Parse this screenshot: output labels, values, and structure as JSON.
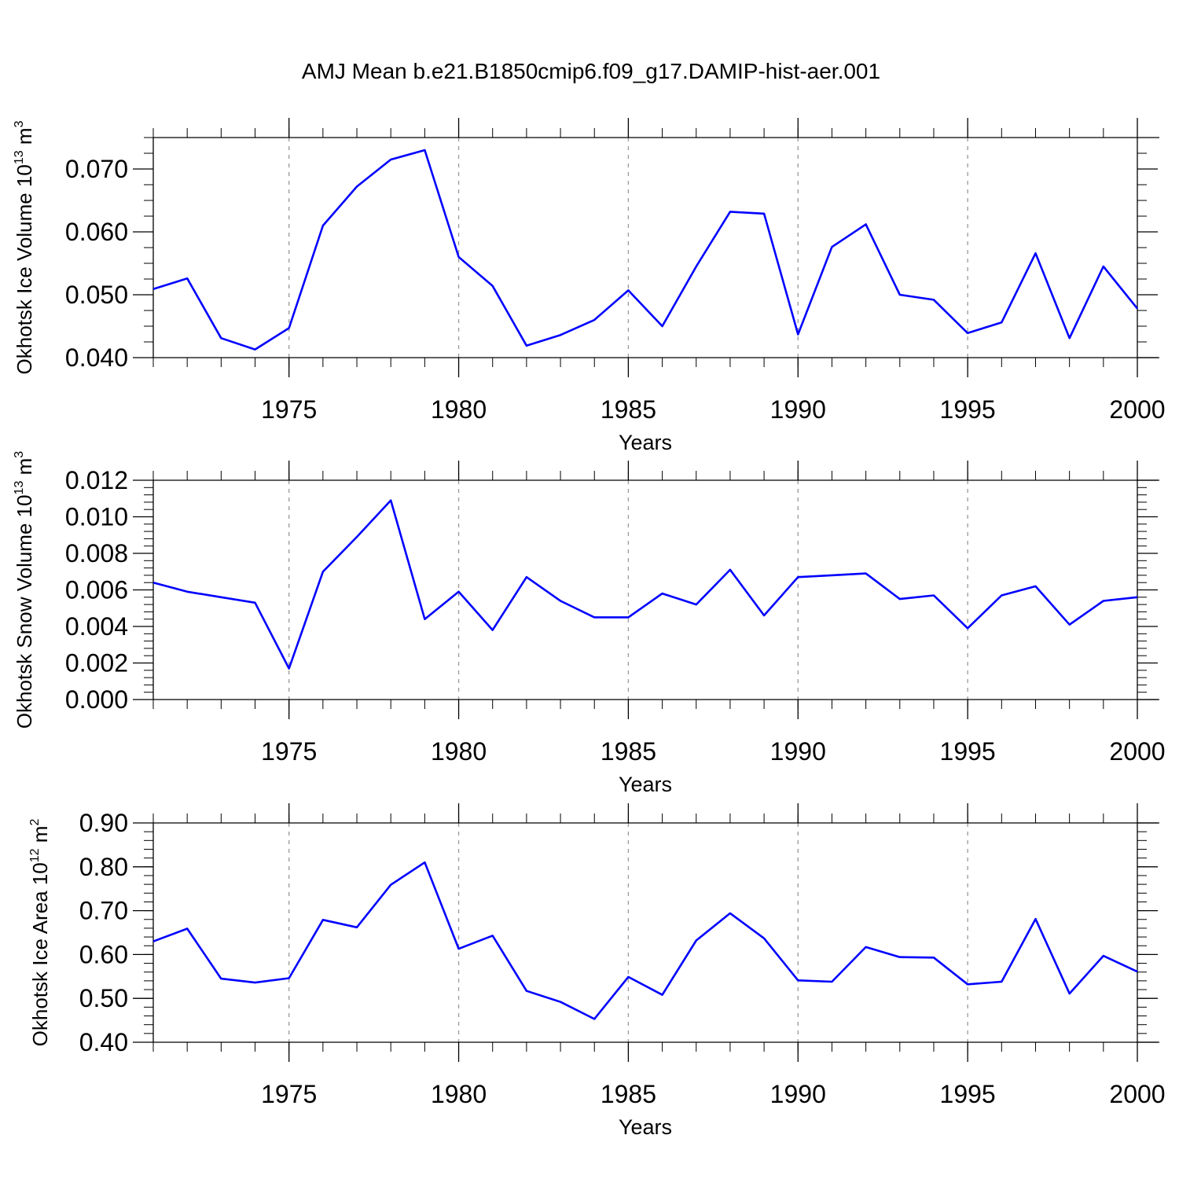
{
  "title": "AMJ Mean b.e21.B1850cmip6.f09_g17.DAMIP-hist-aer.001",
  "line_color": "#0000ff",
  "chart_data": [
    {
      "type": "line",
      "ylabel_main": "Okhotsk Ice Volume 10",
      "ylabel_exp": "13",
      "ylabel_unit": "m",
      "ylabel_unit_exp": "3",
      "xlabel": "Years",
      "xlim": [
        1971,
        2000
      ],
      "ylim": [
        0.04,
        0.075
      ],
      "yticks": [
        0.04,
        0.05,
        0.06,
        0.07
      ],
      "ytick_labels": [
        "0.040",
        "0.050",
        "0.060",
        "0.070"
      ],
      "yminor_step": 0.0025,
      "xticks": [
        1975,
        1980,
        1985,
        1990,
        1995,
        2000
      ],
      "xtick_labels": [
        "1975",
        "1980",
        "1985",
        "1990",
        "1995",
        "2000"
      ],
      "grid": "dashed vertical at major x ticks",
      "x": [
        1971,
        1972,
        1973,
        1974,
        1975,
        1976,
        1977,
        1978,
        1979,
        1980,
        1981,
        1982,
        1983,
        1984,
        1985,
        1986,
        1987,
        1988,
        1989,
        1990,
        1991,
        1992,
        1993,
        1994,
        1995,
        1996,
        1997,
        1998,
        1999,
        2000
      ],
      "series": [
        {
          "values": [
            0.0509,
            0.0526,
            0.0431,
            0.0413,
            0.0447,
            0.061,
            0.0672,
            0.0715,
            0.073,
            0.056,
            0.0514,
            0.0419,
            0.0436,
            0.046,
            0.0507,
            0.045,
            0.0545,
            0.0632,
            0.0629,
            0.0437,
            0.0576,
            0.0612,
            0.05,
            0.0492,
            0.0439,
            0.0456,
            0.0566,
            0.0431,
            0.0545,
            0.0478
          ]
        }
      ]
    },
    {
      "type": "line",
      "ylabel_main": "Okhotsk Snow Volume 10",
      "ylabel_exp": "13",
      "ylabel_unit": "m",
      "ylabel_unit_exp": "3",
      "xlabel": "Years",
      "xlim": [
        1971,
        2000
      ],
      "ylim": [
        0.0,
        0.012
      ],
      "yticks": [
        0.0,
        0.002,
        0.004,
        0.006,
        0.008,
        0.01,
        0.012
      ],
      "ytick_labels": [
        "0.000",
        "0.002",
        "0.004",
        "0.006",
        "0.008",
        "0.010",
        "0.012"
      ],
      "yminor_step": 0.0004,
      "xticks": [
        1975,
        1980,
        1985,
        1990,
        1995,
        2000
      ],
      "xtick_labels": [
        "1975",
        "1980",
        "1985",
        "1990",
        "1995",
        "2000"
      ],
      "grid": "dashed vertical at major x ticks",
      "x": [
        1971,
        1972,
        1973,
        1974,
        1975,
        1976,
        1977,
        1978,
        1979,
        1980,
        1981,
        1982,
        1983,
        1984,
        1985,
        1986,
        1987,
        1988,
        1989,
        1990,
        1991,
        1992,
        1993,
        1994,
        1995,
        1996,
        1997,
        1998,
        1999,
        2000
      ],
      "series": [
        {
          "values": [
            0.0064,
            0.0059,
            0.0056,
            0.0053,
            0.0017,
            0.007,
            0.0089,
            0.0109,
            0.0044,
            0.0059,
            0.0038,
            0.0067,
            0.0054,
            0.0045,
            0.0045,
            0.0058,
            0.0052,
            0.0071,
            0.0046,
            0.0067,
            0.0068,
            0.0069,
            0.0055,
            0.0057,
            0.0039,
            0.0057,
            0.0062,
            0.0041,
            0.0054,
            0.0056
          ]
        }
      ]
    },
    {
      "type": "line",
      "ylabel_main": "Okhotsk Ice Area 10",
      "ylabel_exp": "12",
      "ylabel_unit": "m",
      "ylabel_unit_exp": "2",
      "xlabel": "Years",
      "xlim": [
        1971,
        2000
      ],
      "ylim": [
        0.4,
        0.9
      ],
      "yticks": [
        0.4,
        0.5,
        0.6,
        0.7,
        0.8,
        0.9
      ],
      "ytick_labels": [
        "0.40",
        "0.50",
        "0.60",
        "0.70",
        "0.80",
        "0.90"
      ],
      "yminor_step": 0.02,
      "xticks": [
        1975,
        1980,
        1985,
        1990,
        1995,
        2000
      ],
      "xtick_labels": [
        "1975",
        "1980",
        "1985",
        "1990",
        "1995",
        "2000"
      ],
      "grid": "dashed vertical at major x ticks",
      "x": [
        1971,
        1972,
        1973,
        1974,
        1975,
        1976,
        1977,
        1978,
        1979,
        1980,
        1981,
        1982,
        1983,
        1984,
        1985,
        1986,
        1987,
        1988,
        1989,
        1990,
        1991,
        1992,
        1993,
        1994,
        1995,
        1996,
        1997,
        1998,
        1999,
        2000
      ],
      "series": [
        {
          "values": [
            0.63,
            0.659,
            0.545,
            0.536,
            0.546,
            0.679,
            0.662,
            0.759,
            0.81,
            0.613,
            0.643,
            0.517,
            0.492,
            0.453,
            0.549,
            0.508,
            0.632,
            0.694,
            0.637,
            0.541,
            0.538,
            0.617,
            0.594,
            0.593,
            0.532,
            0.538,
            0.681,
            0.511,
            0.597,
            0.561
          ]
        }
      ]
    }
  ]
}
